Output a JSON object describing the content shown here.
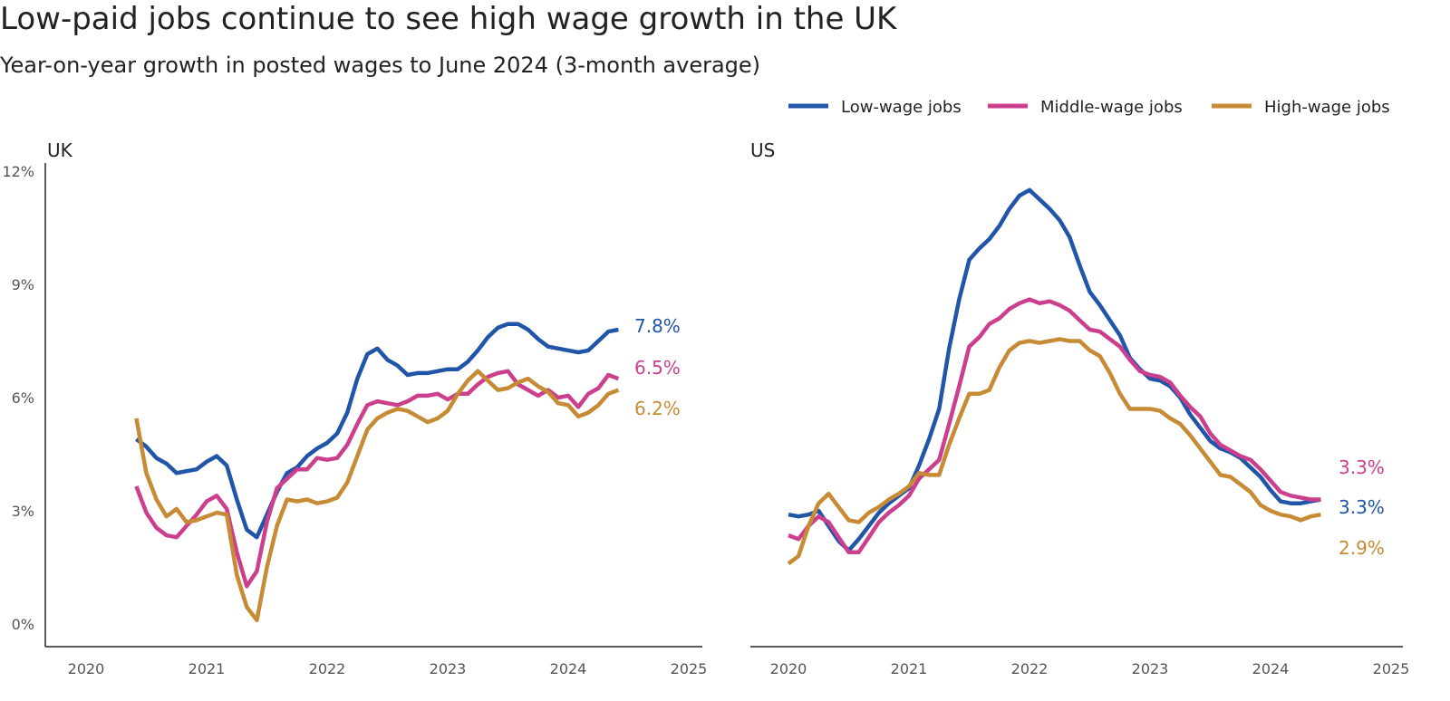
{
  "title": "Low-paid jobs continue to see high wage growth in the UK",
  "subtitle": "Year-on-year growth in posted wages to June 2024 (3-month average)",
  "colors": {
    "low": "#2155a8",
    "middle": "#cc3f8c",
    "high": "#c68b34",
    "axis": "#222222",
    "text": "#222222",
    "tick": "#555555"
  },
  "legend": [
    {
      "key": "low",
      "label": "Low-wage jobs"
    },
    {
      "key": "middle",
      "label": "Middle-wage jobs"
    },
    {
      "key": "high",
      "label": "High-wage jobs"
    }
  ],
  "chart_data": [
    {
      "type": "line",
      "title": "UK",
      "xlim": [
        2020,
        2025
      ],
      "ylim": [
        0,
        12
      ],
      "x_ticks": [
        "2020",
        "2021",
        "2022",
        "2023",
        "2024",
        "2025"
      ],
      "y_ticks": [
        "0%",
        "3%",
        "6%",
        "9%",
        "12%"
      ],
      "y_tick_values": [
        0,
        3,
        6,
        9,
        12
      ],
      "grid": false,
      "legend": "top-right",
      "x_first": "2020-06",
      "x_last": "2024-06",
      "x_step": "monthly",
      "series": [
        {
          "key": "low",
          "name": "Low-wage jobs",
          "end_label": "7.8%",
          "values": [
            4.9,
            4.7,
            4.4,
            4.25,
            4.0,
            4.05,
            4.1,
            4.3,
            4.45,
            4.2,
            3.3,
            2.5,
            2.3,
            2.9,
            3.5,
            4.0,
            4.15,
            4.45,
            4.65,
            4.8,
            5.05,
            5.6,
            6.5,
            7.15,
            7.3,
            7.0,
            6.85,
            6.6,
            6.65,
            6.65,
            6.7,
            6.75,
            6.75,
            6.95,
            7.25,
            7.6,
            7.85,
            7.95,
            7.95,
            7.8,
            7.55,
            7.35,
            7.3,
            7.25,
            7.2,
            7.25,
            7.5,
            7.75,
            7.8
          ]
        },
        {
          "key": "middle",
          "name": "Middle-wage jobs",
          "end_label": "6.5%",
          "values": [
            3.65,
            2.95,
            2.55,
            2.35,
            2.3,
            2.6,
            2.9,
            3.25,
            3.4,
            3.05,
            1.9,
            1.0,
            1.4,
            2.7,
            3.6,
            3.85,
            4.1,
            4.1,
            4.4,
            4.35,
            4.4,
            4.75,
            5.3,
            5.8,
            5.9,
            5.85,
            5.8,
            5.9,
            6.05,
            6.05,
            6.1,
            5.95,
            6.1,
            6.1,
            6.35,
            6.55,
            6.65,
            6.7,
            6.35,
            6.2,
            6.05,
            6.2,
            6.0,
            6.05,
            5.75,
            6.1,
            6.25,
            6.6,
            6.5
          ]
        },
        {
          "key": "high",
          "name": "High-wage jobs",
          "end_label": "6.2%",
          "values": [
            5.45,
            4.0,
            3.3,
            2.85,
            3.05,
            2.7,
            2.75,
            2.85,
            2.95,
            2.9,
            1.3,
            0.45,
            0.1,
            1.5,
            2.6,
            3.3,
            3.25,
            3.3,
            3.2,
            3.25,
            3.35,
            3.75,
            4.45,
            5.15,
            5.45,
            5.6,
            5.7,
            5.65,
            5.5,
            5.35,
            5.45,
            5.65,
            6.1,
            6.45,
            6.7,
            6.45,
            6.2,
            6.25,
            6.4,
            6.5,
            6.3,
            6.15,
            5.85,
            5.8,
            5.5,
            5.6,
            5.8,
            6.1,
            6.2
          ]
        }
      ]
    },
    {
      "type": "line",
      "title": "US",
      "xlim": [
        2020,
        2025
      ],
      "ylim": [
        0,
        12
      ],
      "x_ticks": [
        "2020",
        "2021",
        "2022",
        "2023",
        "2024",
        "2025"
      ],
      "grid": false,
      "x_first": "2020-01",
      "x_last": "2024-06",
      "x_step": "monthly",
      "series": [
        {
          "key": "low",
          "name": "Low-wage jobs",
          "end_label": "3.3%",
          "values": [
            2.9,
            2.85,
            2.9,
            3.0,
            2.6,
            2.2,
            1.95,
            2.25,
            2.6,
            2.95,
            3.2,
            3.4,
            3.6,
            4.2,
            4.9,
            5.7,
            7.3,
            8.6,
            9.65,
            9.95,
            10.2,
            10.55,
            11.0,
            11.35,
            11.5,
            11.25,
            11.0,
            10.7,
            10.25,
            9.5,
            8.8,
            8.45,
            8.05,
            7.65,
            7.05,
            6.75,
            6.5,
            6.45,
            6.3,
            6.0,
            5.55,
            5.2,
            4.85,
            4.65,
            4.55,
            4.4,
            4.15,
            3.9,
            3.55,
            3.25,
            3.2,
            3.2,
            3.25,
            3.3
          ]
        },
        {
          "key": "middle",
          "name": "Middle-wage jobs",
          "end_label": "3.3%",
          "values": [
            2.35,
            2.25,
            2.6,
            2.85,
            2.7,
            2.3,
            1.9,
            1.9,
            2.3,
            2.7,
            2.95,
            3.15,
            3.4,
            3.85,
            4.1,
            4.35,
            5.3,
            6.3,
            7.35,
            7.6,
            7.95,
            8.1,
            8.35,
            8.5,
            8.6,
            8.5,
            8.55,
            8.45,
            8.3,
            8.05,
            7.8,
            7.75,
            7.55,
            7.35,
            7.0,
            6.7,
            6.6,
            6.55,
            6.4,
            6.05,
            5.75,
            5.5,
            5.05,
            4.75,
            4.6,
            4.45,
            4.35,
            4.1,
            3.8,
            3.5,
            3.4,
            3.35,
            3.3,
            3.3
          ]
        },
        {
          "key": "high",
          "name": "High-wage jobs",
          "end_label": "2.9%",
          "values": [
            1.6,
            1.8,
            2.6,
            3.2,
            3.45,
            3.1,
            2.75,
            2.7,
            2.95,
            3.1,
            3.3,
            3.45,
            3.65,
            4.0,
            3.95,
            3.95,
            4.75,
            5.45,
            6.1,
            6.1,
            6.2,
            6.8,
            7.25,
            7.45,
            7.5,
            7.45,
            7.5,
            7.55,
            7.5,
            7.5,
            7.25,
            7.1,
            6.65,
            6.1,
            5.7,
            5.7,
            5.7,
            5.65,
            5.45,
            5.3,
            5.0,
            4.65,
            4.3,
            3.95,
            3.9,
            3.7,
            3.5,
            3.15,
            3.0,
            2.9,
            2.85,
            2.75,
            2.85,
            2.9
          ]
        }
      ]
    }
  ]
}
